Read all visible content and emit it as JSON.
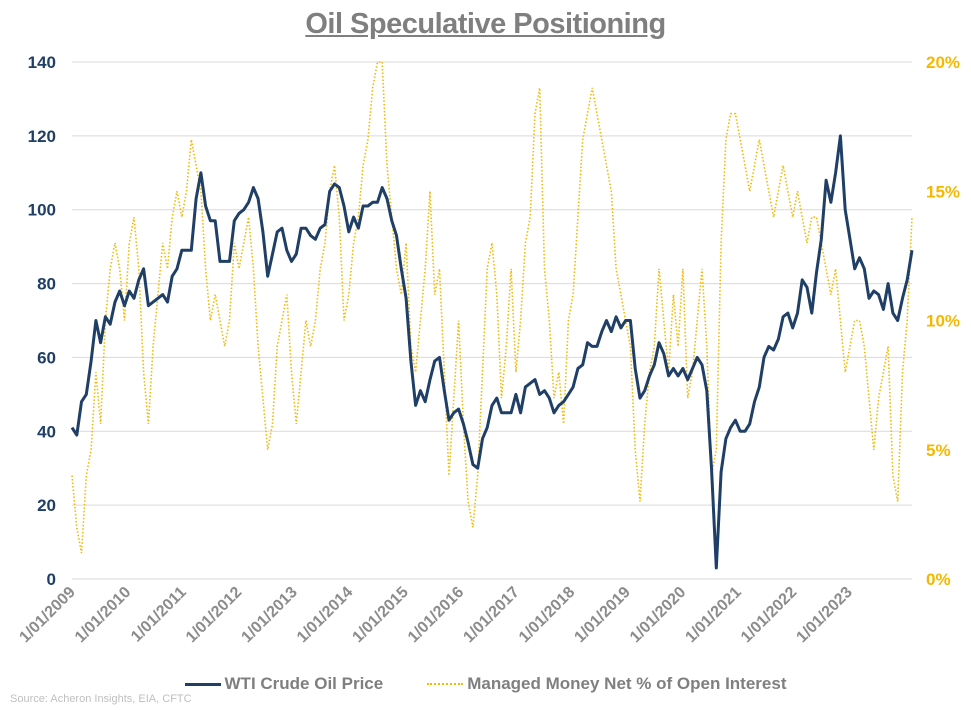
{
  "chart_data": {
    "type": "line",
    "title": "Oil Speculative Positioning",
    "source": "Source: Acheron Insights, EIA, CFTC",
    "x_tick_labels": [
      "1/01/2009",
      "1/01/2010",
      "1/01/2011",
      "1/01/2012",
      "1/01/2013",
      "1/01/2014",
      "1/01/2015",
      "1/01/2016",
      "1/01/2017",
      "1/01/2018",
      "1/01/2019",
      "1/01/2020",
      "1/01/2021",
      "1/01/2022",
      "1/01/2023"
    ],
    "y_left": {
      "ylim": [
        0,
        140
      ],
      "ticks": [
        "0",
        "20",
        "40",
        "60",
        "80",
        "100",
        "120",
        "140"
      ],
      "color": "#1F3F66"
    },
    "y_right": {
      "ylim": [
        0,
        20
      ],
      "ticks": [
        "0%",
        "5%",
        "10%",
        "15%",
        "20%"
      ],
      "color": "#F5B800"
    },
    "grid": "horizontal",
    "legend": "bottom",
    "x_resolution": "monthly, Jan 2009 – Sep 2023",
    "series": [
      {
        "name": "WTI Crude Oil Price",
        "axis": "left",
        "color": "#1F3F66",
        "style": "solid",
        "values_by_year": {
          "2009": [
            41,
            39,
            48,
            50,
            59,
            70,
            64,
            71,
            69,
            75,
            78,
            74
          ],
          "2010": [
            78,
            76,
            81,
            84,
            74,
            75,
            76,
            77,
            75,
            82,
            84,
            89
          ],
          "2011": [
            89,
            89,
            103,
            110,
            101,
            97,
            97,
            86,
            86,
            86,
            97,
            99
          ],
          "2012": [
            100,
            102,
            106,
            103,
            94,
            82,
            88,
            94,
            95,
            89,
            86,
            88
          ],
          "2013": [
            95,
            95,
            93,
            92,
            95,
            96,
            105,
            107,
            106,
            101,
            94,
            98
          ],
          "2014": [
            95,
            101,
            101,
            102,
            102,
            106,
            103,
            97,
            93,
            84,
            76,
            59
          ],
          "2015": [
            47,
            51,
            48,
            54,
            59,
            60,
            51,
            43,
            45,
            46,
            42,
            37
          ],
          "2016": [
            31,
            30,
            38,
            41,
            47,
            49,
            45,
            45,
            45,
            50,
            45,
            52
          ],
          "2017": [
            53,
            54,
            50,
            51,
            49,
            45,
            47,
            48,
            50,
            52,
            57,
            58
          ],
          "2018": [
            64,
            63,
            63,
            67,
            70,
            67,
            71,
            68,
            70,
            70,
            57,
            49
          ],
          "2019": [
            51,
            55,
            58,
            64,
            61,
            55,
            57,
            55,
            57,
            54,
            57,
            60
          ],
          "2020": [
            58,
            51,
            30,
            3,
            29,
            38,
            41,
            43,
            40,
            40,
            42,
            48
          ],
          "2021": [
            52,
            60,
            63,
            62,
            65,
            71,
            72,
            68,
            72,
            81,
            79,
            72
          ],
          "2022": [
            83,
            92,
            108,
            102,
            110,
            120,
            100,
            92,
            84,
            87,
            84,
            76
          ],
          "2023": [
            78,
            77,
            73,
            80,
            72,
            70,
            76,
            81,
            89
          ]
        }
      },
      {
        "name": "Managed Money Net % of Open Interest",
        "axis": "right",
        "color": "#F5B800",
        "style": "dotted",
        "values_by_year": {
          "2009": [
            4,
            2,
            1,
            4,
            5,
            8,
            6,
            10,
            12,
            13,
            12,
            10
          ],
          "2010": [
            13,
            14,
            12,
            8,
            6,
            9,
            11,
            13,
            12,
            14,
            15,
            14
          ],
          "2011": [
            15,
            17,
            16,
            15,
            12,
            10,
            11,
            10,
            9,
            10,
            13,
            12
          ],
          "2012": [
            13,
            14,
            12,
            9,
            7,
            5,
            6,
            9,
            10,
            11,
            8,
            6
          ],
          "2013": [
            8,
            10,
            9,
            10,
            12,
            13,
            15,
            16,
            14,
            10,
            11,
            13
          ],
          "2014": [
            14,
            16,
            17,
            19,
            20,
            20,
            16,
            14,
            12,
            11,
            13,
            9
          ],
          "2015": [
            8,
            10,
            12,
            15,
            11,
            12,
            8,
            4,
            7,
            10,
            6,
            3
          ],
          "2016": [
            2,
            4,
            8,
            12,
            13,
            11,
            7,
            9,
            12,
            8,
            10,
            13
          ],
          "2017": [
            14,
            18,
            19,
            12,
            10,
            7,
            8,
            6,
            10,
            11,
            14,
            17
          ],
          "2018": [
            18,
            19,
            18,
            17,
            16,
            15,
            12,
            11,
            10,
            9,
            5,
            3
          ],
          "2019": [
            6,
            8,
            9,
            12,
            10,
            8,
            11,
            9,
            12,
            7,
            8,
            10
          ],
          "2020": [
            12,
            9,
            4,
            5,
            13,
            17,
            18,
            18,
            17,
            16,
            15,
            16
          ],
          "2021": [
            17,
            16,
            15,
            14,
            15,
            16,
            15,
            14,
            15,
            14,
            13,
            14
          ],
          "2022": [
            14,
            13,
            12,
            11,
            12,
            10,
            8,
            9,
            10,
            10,
            9,
            7
          ],
          "2023": [
            5,
            7,
            8,
            9,
            4,
            3,
            8,
            10,
            14
          ]
        }
      }
    ]
  }
}
